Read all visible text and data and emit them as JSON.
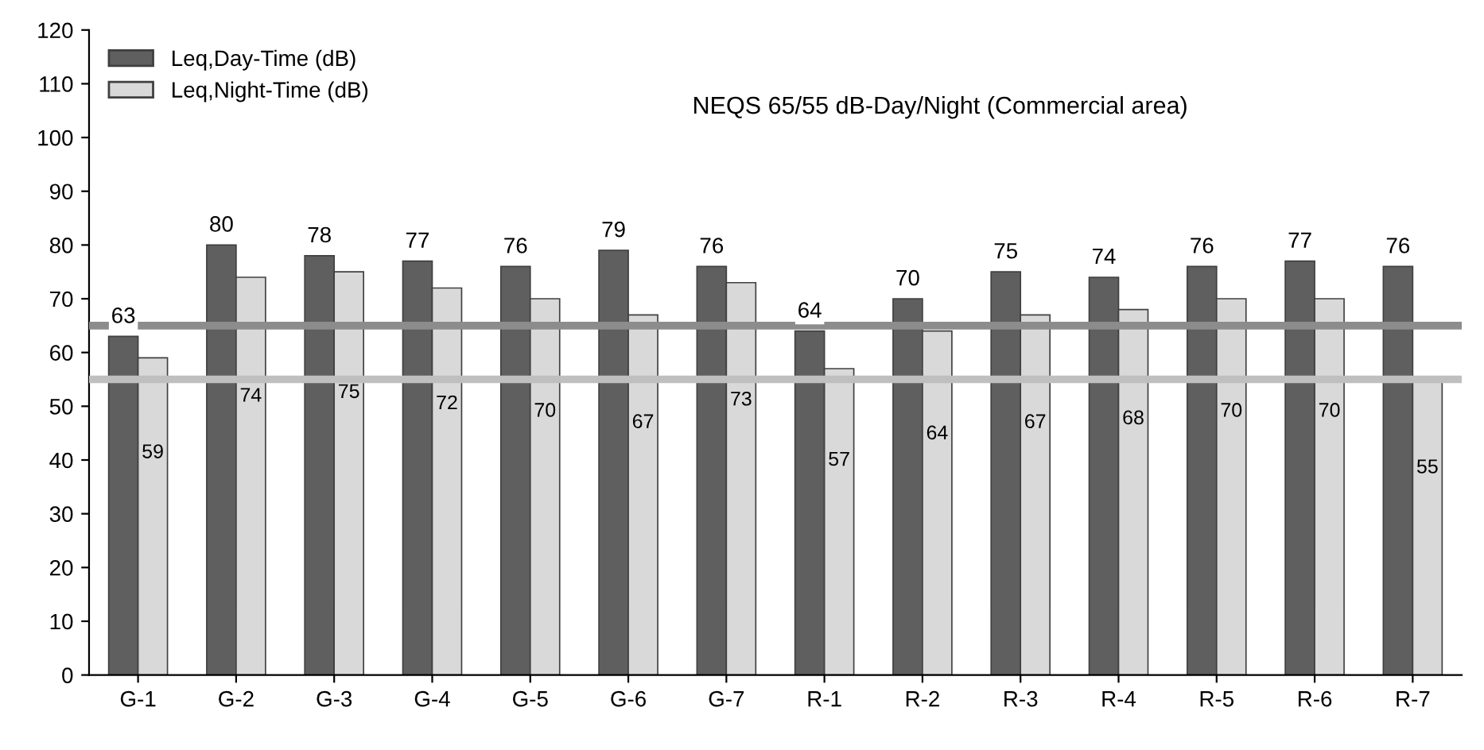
{
  "chart_data": {
    "type": "bar",
    "categories": [
      "G-1",
      "G-2",
      "G-3",
      "G-4",
      "G-5",
      "G-6",
      "G-7",
      "R-1",
      "R-2",
      "R-3",
      "R-4",
      "R-5",
      "R-6",
      "R-7"
    ],
    "series": [
      {
        "name": "Leq,Day-Time (dB)",
        "color": "#5f5f5f",
        "values": [
          63,
          80,
          78,
          77,
          76,
          79,
          76,
          64,
          70,
          75,
          74,
          76,
          77,
          76
        ]
      },
      {
        "name": "Leq,Night-Time (dB)",
        "color": "#d9d9d9",
        "values": [
          59,
          74,
          75,
          72,
          70,
          67,
          73,
          57,
          64,
          67,
          68,
          70,
          70,
          55
        ]
      }
    ],
    "ylim": [
      0,
      120
    ],
    "yticks": [
      0,
      10,
      20,
      30,
      40,
      50,
      60,
      70,
      80,
      90,
      100,
      110,
      120
    ],
    "grid": false,
    "legend": "top left",
    "data_labels": true,
    "annotations": [
      "NEQS 65/55 dB-Day/Night (Commercial area)"
    ],
    "ref_lines": [
      {
        "axis": "y",
        "value": 65,
        "color": "#8c8c8c"
      },
      {
        "axis": "y",
        "value": 55,
        "color": "#bfbfbf"
      }
    ]
  }
}
